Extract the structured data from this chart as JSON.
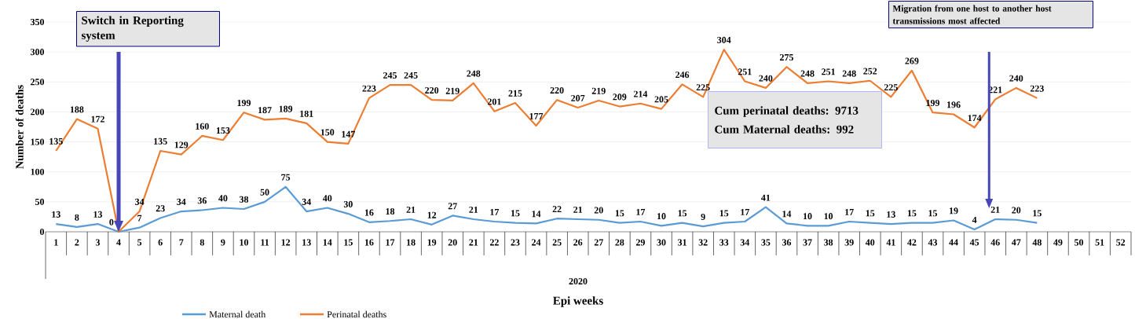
{
  "chart_data": {
    "type": "line",
    "xlabel": "Epi weeks",
    "ylabel": "Number of deaths",
    "categories": [
      "1",
      "2",
      "3",
      "4",
      "5",
      "6",
      "7",
      "8",
      "9",
      "10",
      "11",
      "12",
      "13",
      "14",
      "15",
      "16",
      "17",
      "18",
      "19",
      "20",
      "21",
      "22",
      "23",
      "24",
      "25",
      "26",
      "27",
      "28",
      "29",
      "30",
      "31",
      "32",
      "33",
      "34",
      "35",
      "36",
      "37",
      "38",
      "39",
      "40",
      "41",
      "42",
      "43",
      "44",
      "45",
      "46",
      "47",
      "48",
      "49",
      "50",
      "51",
      "52"
    ],
    "series": [
      {
        "name": "Maternal death",
        "color": "#5b9bd5",
        "values": [
          13,
          8,
          13,
          0,
          7,
          23,
          34,
          36,
          40,
          38,
          50,
          75,
          34,
          40,
          30,
          16,
          18,
          21,
          12,
          27,
          21,
          17,
          15,
          14,
          22,
          21,
          20,
          15,
          17,
          10,
          15,
          9,
          15,
          17,
          41,
          14,
          10,
          10,
          17,
          15,
          13,
          15,
          15,
          19,
          4,
          21,
          20,
          15,
          null,
          null,
          null,
          null
        ],
        "value_labels": [
          "13",
          "8",
          "13",
          "0",
          "7",
          "23",
          "34",
          "36",
          "40",
          "38",
          "50",
          "75",
          "34",
          "40",
          "30",
          "16",
          "18",
          "21",
          "12",
          "27",
          "21",
          "17",
          "15",
          "14",
          "22",
          "21",
          "20",
          "15",
          "17",
          "10",
          "15",
          "9",
          "15",
          "17",
          "41",
          "14",
          "10",
          "10",
          "17",
          "15",
          "13",
          "15",
          "15",
          "19",
          "4",
          "21",
          "20",
          "15",
          null,
          null,
          null,
          null
        ]
      },
      {
        "name": "Perinatal deaths",
        "color": "#ed7d31",
        "values": [
          135,
          188,
          172,
          0,
          34,
          135,
          129,
          160,
          153,
          199,
          187,
          189,
          181,
          150,
          147,
          223,
          245,
          245,
          220,
          219,
          248,
          201,
          215,
          177,
          220,
          207,
          219,
          209,
          214,
          205,
          246,
          225,
          304,
          251,
          240,
          275,
          248,
          251,
          248,
          252,
          225,
          269,
          199,
          196,
          174,
          221,
          240,
          223,
          null,
          null,
          null,
          null
        ],
        "value_labels": [
          "135",
          "188",
          "172",
          null,
          "34",
          "135",
          "129",
          "160",
          "153",
          "199",
          "187",
          "189",
          "181",
          "150",
          "147",
          "223",
          "245",
          "245",
          "220",
          "219",
          "248",
          "201",
          "215",
          "177",
          "220",
          "207",
          "219",
          "209",
          "214",
          "205",
          "246",
          "225",
          "304",
          "251",
          "240",
          "275",
          "248",
          "251",
          "248",
          "252",
          "225",
          "269",
          "199",
          "196",
          "174",
          "221",
          "240",
          "223",
          null,
          null,
          null,
          null
        ]
      }
    ],
    "ylim": [
      0,
      350
    ],
    "yticks": [
      0,
      50,
      100,
      150,
      200,
      250,
      300,
      350
    ],
    "grid": "y",
    "legend": "bottom",
    "marker": "none",
    "line_style": "solid",
    "annotations": [
      "Switch in Reporting system",
      "Migration from one host to another host transmissions most affected",
      "Cum perinatal deaths: 9713",
      "Cum Maternal deaths: 992",
      "2020"
    ]
  }
}
